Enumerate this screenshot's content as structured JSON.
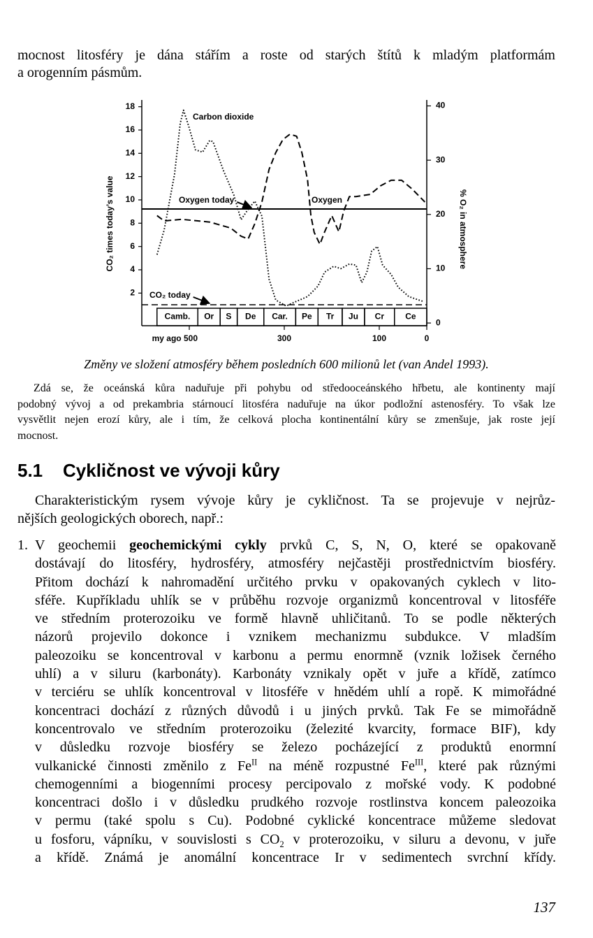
{
  "page": {
    "intro_lines": [
      "mocnost litosféry je dána stářím a roste od starých štítů k mladým platformám",
      "a orogenním pásmům."
    ],
    "caption": "Změny ve složení atmosféry během posledních 600 milionů let (van Andel 1993).",
    "small_paragraph": [
      "Zdá se, že oceánská kůra naduřuje při pohybu od středooceánského hřbetu, ale kontinenty mají",
      "podobný vývoj a od prekambria stárnoucí litosféra naduřuje na úkor podložní astenosféry. To však lze",
      "vysvětlit nejen erozí kůry, ale i tím, že celková plocha kontinentální kůry se zmenšuje, jak roste její",
      "mocnost."
    ],
    "section": {
      "number": "5.1",
      "title": "Cykličnost ve vývoji kůry"
    },
    "paragraph": [
      "Charakteristickým rysem vývoje kůry je cykličnost. Ta se projevuje v nejrůz-",
      "nějších geologických oborech, např.:"
    ],
    "list": [
      {
        "marker": "1.",
        "lines": [
          [
            [
              "plain",
              "V geochemii "
            ],
            [
              "bold",
              "geochemickými cykly"
            ],
            [
              "plain",
              " prvků C, S, N, O, které se opakovaně"
            ]
          ],
          [
            [
              "plain",
              "dostávají do litosféry, hydrosféry, atmosféry nejčastěji prostřednictvím biosféry."
            ]
          ],
          [
            [
              "plain",
              "Přitom dochází k nahromadění určitého prvku v opakovaných cyklech v lito-"
            ]
          ],
          [
            [
              "plain",
              "sféře. Kupříkladu uhlík se v průběhu rozvoje organizmů koncentroval v litosféře"
            ]
          ],
          [
            [
              "plain",
              "ve středním proterozoiku ve formě hlavně uhličitanů. To se podle některých"
            ]
          ],
          [
            [
              "plain",
              "názorů projevilo dokonce i vznikem mechanizmu subdukce. V mladším"
            ]
          ],
          [
            [
              "plain",
              "paleozoiku se koncentroval v karbonu a permu enormně (vznik ložisek černého"
            ]
          ],
          [
            [
              "plain",
              "uhlí) a v siluru (karbonáty). Karbonáty vznikaly opět v juře a křídě, zatímco"
            ]
          ],
          [
            [
              "plain",
              "v terciéru se uhlík koncentroval v litosféře v hnědém uhlí a ropě. K mimořádné"
            ]
          ],
          [
            [
              "plain",
              "koncentraci dochází z různých důvodů i u jiných prvků. Tak Fe se mimořádně"
            ]
          ],
          [
            [
              "plain",
              "koncentrovalo ve středním proterozoiku (železité kvarcity, formace BIF), kdy"
            ]
          ],
          [
            [
              "plain",
              "v důsledku rozvoje biosféry se železo pocházející z produktů enormní"
            ]
          ],
          [
            [
              "plain",
              "vulkanické činnosti změnilo z Fe"
            ],
            [
              "sup",
              "II"
            ],
            [
              "plain",
              " na méně rozpustné Fe"
            ],
            [
              "sup",
              "III"
            ],
            [
              "plain",
              ", které pak různými"
            ]
          ],
          [
            [
              "plain",
              "chemogenními a biogenními procesy percipovalo z mořské vody. K podobné"
            ]
          ],
          [
            [
              "plain",
              "koncentraci došlo i v důsledku prudkého rozvoje rostlinstva koncem paleozoika"
            ]
          ],
          [
            [
              "plain",
              "v permu (také spolu s Cu). Podobné cyklické koncentrace můžeme sledovat"
            ]
          ],
          [
            [
              "plain",
              "u fosforu, vápníku, v souvislosti s CO"
            ],
            [
              "sub",
              "2"
            ],
            [
              "plain",
              " v proterozoiku, v siluru a devonu, v juře"
            ]
          ],
          [
            [
              "plain",
              "a křídě. Známá je anomální koncentrace Ir v sedimentech svrchní křídy."
            ]
          ]
        ]
      }
    ],
    "page_number": "137"
  },
  "chart_data": {
    "type": "line",
    "y_label": "CO₂ times today’s value",
    "y2_label": "% O₂ in atmosphere",
    "xlim": [
      600,
      0
    ],
    "xticks": [
      {
        "value": 500,
        "label": "my ago 500"
      },
      300,
      100,
      0
    ],
    "ylim": [
      -0.8,
      19
    ],
    "yticks": [
      2,
      4,
      6,
      8,
      10,
      12,
      14,
      16,
      18
    ],
    "y2lim": [
      -0.5,
      42
    ],
    "y2ticks": [
      0,
      10,
      20,
      30,
      40
    ],
    "series": [
      {
        "name": "Carbon dioxide",
        "color": "#000000",
        "line_style": "dotted",
        "x": [
          568,
          553,
          531,
          519,
          512,
          501,
          487,
          472,
          457,
          450,
          428,
          406,
          391,
          376,
          362,
          347,
          332,
          318,
          296,
          274,
          251,
          229,
          215,
          196,
          181,
          163,
          149,
          137,
          126,
          116,
          104,
          93,
          75,
          60,
          38,
          9
        ],
        "values": [
          5.3,
          7.4,
          12.2,
          16.6,
          17.7,
          16.3,
          14.3,
          14.1,
          15.1,
          15.0,
          12.5,
          10.4,
          8.3,
          9.2,
          9.9,
          8.6,
          3.2,
          1.4,
          0.9,
          1.3,
          1.7,
          2.6,
          3.8,
          4.3,
          4.1,
          4.5,
          4.4,
          2.9,
          3.8,
          5.6,
          6.0,
          4.4,
          3.6,
          2.5,
          1.7,
          1.3
        ]
      },
      {
        "name": "Oxygen",
        "color": "#000000",
        "line_style": "dashed",
        "axis": "y2",
        "x": [
          568,
          553,
          516,
          457,
          413,
          391,
          376,
          362,
          347,
          332,
          318,
          303,
          288,
          274,
          263,
          251,
          244,
          237,
          225,
          215,
          200,
          185,
          175,
          163,
          149,
          119,
          97,
          75,
          53,
          31,
          4
        ],
        "values": [
          19.8,
          18.8,
          19.1,
          18.6,
          17.5,
          16.0,
          15.5,
          18.3,
          22.3,
          28.3,
          31.4,
          33.8,
          34.8,
          34.4,
          31.4,
          26.4,
          19.8,
          16.7,
          14.5,
          16.8,
          19.8,
          16.8,
          20.6,
          23.3,
          23.3,
          23.7,
          25.3,
          26.3,
          26.3,
          24.7,
          22.3
        ]
      }
    ],
    "reference_lines": [
      {
        "label": "Oxygen today",
        "value": 21,
        "axis": "y2",
        "line_style": "solid"
      },
      {
        "label": "CO₂ today",
        "value": 1,
        "line_style": "dashed"
      }
    ],
    "periods": {
      "labels": [
        "Camb.",
        "Or",
        "S",
        "De",
        "Car.",
        "Pe",
        "Tr",
        "Ju",
        "Cr",
        "Ce"
      ],
      "bounds": [
        568,
        482,
        435,
        399,
        343,
        276,
        229,
        178,
        131,
        68,
        0
      ]
    }
  }
}
